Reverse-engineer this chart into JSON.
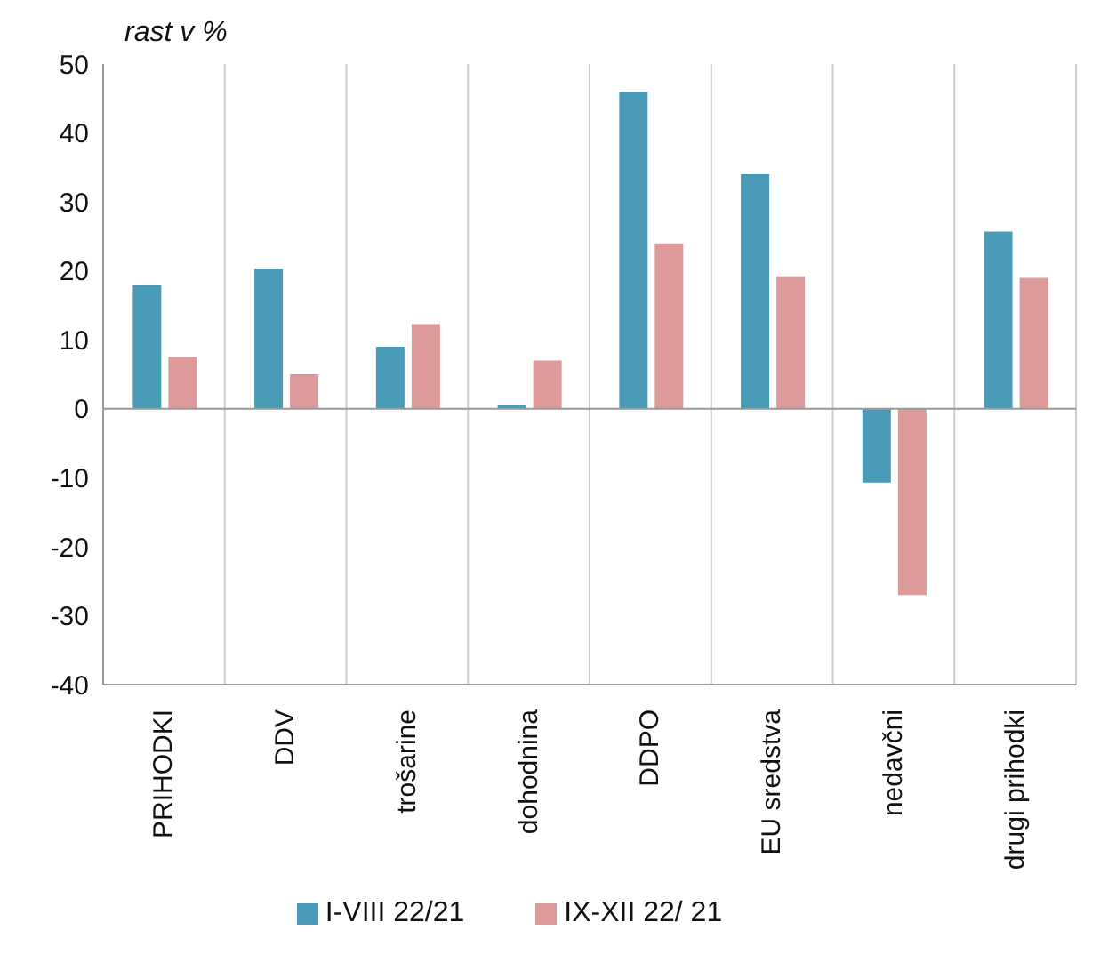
{
  "chart_data": {
    "type": "bar",
    "ylabel": "rast v %",
    "categories": [
      "PRIHODKI",
      "DDV",
      "trošarine",
      "dohodnina",
      "DDPO",
      "EU sredstva",
      "nedavčni",
      "drugi prihodki"
    ],
    "series": [
      {
        "name": "I-VIII 22/21",
        "color": "#4a9bb8",
        "values": [
          18,
          20.3,
          9,
          0.5,
          46,
          34,
          -10.7,
          25.7
        ]
      },
      {
        "name": "IX-XII 22/ 21",
        "color": "#dc9a9a",
        "values": [
          7.5,
          5,
          12.3,
          7,
          24,
          19.2,
          -27,
          19
        ]
      }
    ],
    "ylim": [
      -40,
      50
    ],
    "yticks": [
      -40,
      -30,
      -20,
      -10,
      0,
      10,
      20,
      30,
      40,
      50
    ],
    "grid": "x",
    "legend": "bottom"
  }
}
